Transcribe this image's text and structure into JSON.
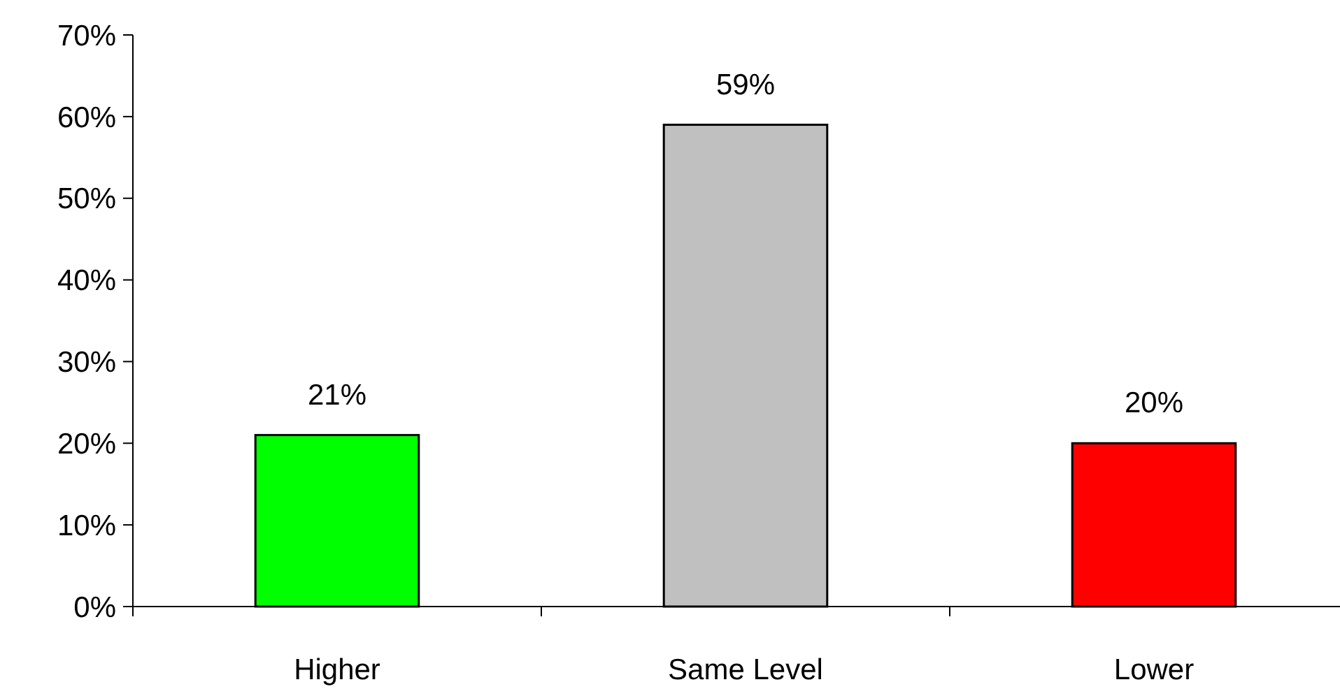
{
  "chart_data": {
    "type": "bar",
    "categories": [
      "Higher",
      "Same Level",
      "Lower"
    ],
    "values": [
      21,
      59,
      20
    ],
    "colors": [
      "#00ff00",
      "#c0c0c0",
      "#ff0000"
    ],
    "ylim": [
      0,
      70
    ],
    "yticks": [
      {
        "value": 0,
        "label": "0%"
      },
      {
        "value": 10,
        "label": "10%"
      },
      {
        "value": 20,
        "label": "20%"
      },
      {
        "value": 30,
        "label": "30%"
      },
      {
        "value": 40,
        "label": "40%"
      },
      {
        "value": 50,
        "label": "50%"
      },
      {
        "value": 60,
        "label": "60%"
      },
      {
        "value": 70,
        "label": "70%"
      }
    ],
    "value_labels": [
      "21%",
      "59%",
      "20%"
    ],
    "grid": false
  }
}
